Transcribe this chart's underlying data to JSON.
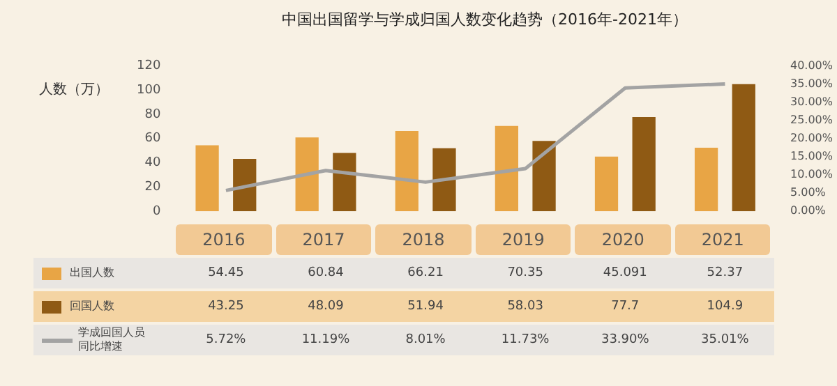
{
  "chart_data": {
    "type": "bar",
    "title": "中国出国留学与学成归国人数变化趋势（2016年-2021年）",
    "ylabel": "人数（万）",
    "categories": [
      "2016",
      "2017",
      "2018",
      "2019",
      "2020",
      "2021"
    ],
    "series": [
      {
        "name": "出国人数",
        "color": "#e8a545",
        "values": [
          54.45,
          60.84,
          66.21,
          70.35,
          45.091,
          52.37
        ],
        "value_labels": [
          "54.45",
          "60.84",
          "66.21",
          "70.35",
          "45.091",
          "52.37"
        ]
      },
      {
        "name": "回国人数",
        "color": "#8f5a14",
        "values": [
          43.25,
          48.09,
          51.94,
          58.03,
          77.7,
          104.9
        ],
        "value_labels": [
          "43.25",
          "48.09",
          "51.94",
          "58.03",
          "77.7",
          "104.9"
        ]
      },
      {
        "name": "学成回国人员同比增速",
        "type": "line",
        "axis": "y2",
        "color": "#a3a3a3",
        "values": [
          5.72,
          11.19,
          8.01,
          11.73,
          33.9,
          35.01
        ],
        "value_labels": [
          "5.72%",
          "11.19%",
          "8.01%",
          "11.73%",
          "33.90%",
          "35.01%"
        ]
      }
    ],
    "ylim": [
      0,
      120
    ],
    "yticks": [
      0,
      20,
      40,
      60,
      80,
      100,
      120
    ],
    "y2lim": [
      0,
      40
    ],
    "y2ticks": [
      {
        "value": 0,
        "label": "0.00%"
      },
      {
        "value": 5,
        "label": "5.00%"
      },
      {
        "value": 10,
        "label": "10.00%"
      },
      {
        "value": 15,
        "label": "15.00%"
      },
      {
        "value": 20,
        "label": "20.00%"
      },
      {
        "value": 25,
        "label": "25.00%"
      },
      {
        "value": 30,
        "label": "30.00%"
      },
      {
        "value": 35,
        "label": "35.00%"
      },
      {
        "value": 40,
        "label": "40.00%"
      }
    ],
    "legend": "bottom",
    "grid": false,
    "marker": "none"
  }
}
